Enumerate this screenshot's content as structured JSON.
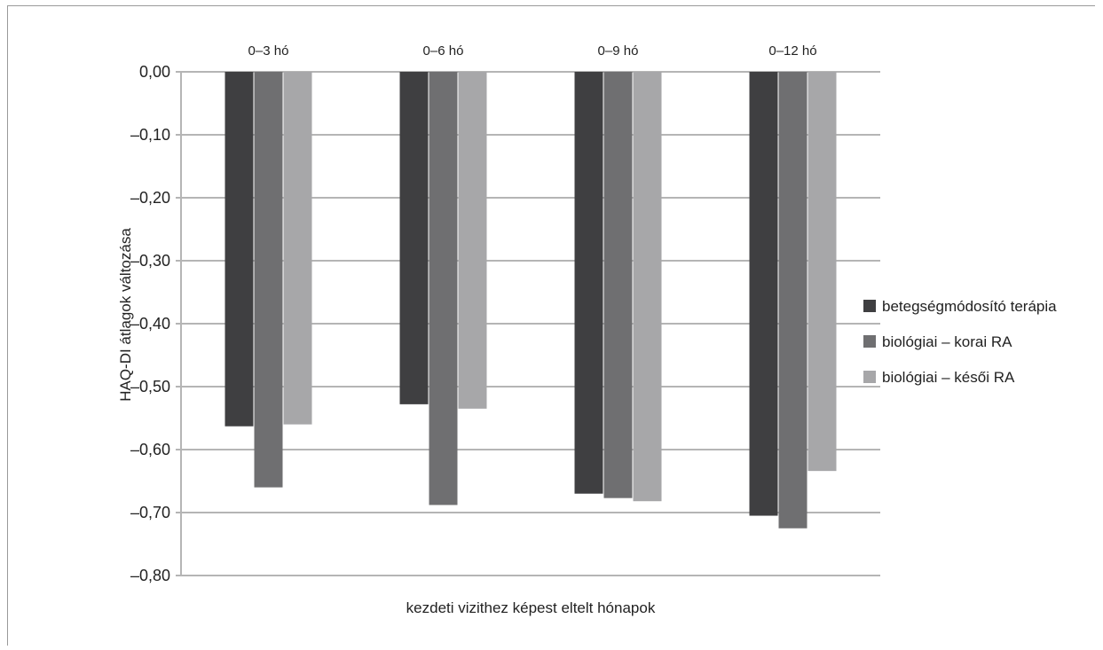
{
  "chart_data": {
    "type": "bar",
    "categories": [
      "0–3 hó",
      "0–6 hó",
      "0–9 hó",
      "0–12 hó"
    ],
    "series": [
      {
        "name": "betegségmódosító terápia",
        "color": "#3f3f41",
        "values": [
          -0.563,
          -0.528,
          -0.67,
          -0.705
        ]
      },
      {
        "name": "biológiai – korai RA",
        "color": "#6f6f71",
        "values": [
          -0.66,
          -0.688,
          -0.677,
          -0.725
        ]
      },
      {
        "name": "biológiai – késői RA",
        "color": "#a7a7a9",
        "values": [
          -0.56,
          -0.535,
          -0.682,
          -0.634
        ]
      }
    ],
    "ylim": [
      -0.8,
      0
    ],
    "yticks": [
      0,
      -0.1,
      -0.2,
      -0.3,
      -0.4,
      -0.5,
      -0.6,
      -0.7,
      -0.8
    ],
    "ytick_labels": [
      "0,00",
      "–0,10",
      "–0,20",
      "–0,30",
      "–0,40",
      "–0,50",
      "–0,60",
      "–0,70",
      "–0,80"
    ],
    "xlabel": "kezdeti vizithez képest eltelt hónapok",
    "ylabel": "HAQ-DI átlagok változása",
    "grid": true,
    "legend_position": "right",
    "gridline_color": "#b5b5b5"
  }
}
